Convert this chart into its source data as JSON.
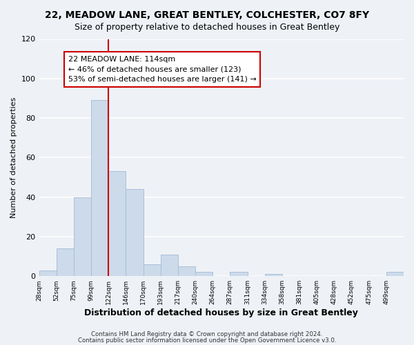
{
  "title": "22, MEADOW LANE, GREAT BENTLEY, COLCHESTER, CO7 8FY",
  "subtitle": "Size of property relative to detached houses in Great Bentley",
  "xlabel": "Distribution of detached houses by size in Great Bentley",
  "ylabel": "Number of detached properties",
  "bin_labels": [
    "28sqm",
    "52sqm",
    "75sqm",
    "99sqm",
    "122sqm",
    "146sqm",
    "170sqm",
    "193sqm",
    "217sqm",
    "240sqm",
    "264sqm",
    "287sqm",
    "311sqm",
    "334sqm",
    "358sqm",
    "381sqm",
    "405sqm",
    "428sqm",
    "452sqm",
    "475sqm",
    "499sqm"
  ],
  "bar_values": [
    3,
    14,
    40,
    89,
    53,
    44,
    6,
    11,
    5,
    2,
    0,
    2,
    0,
    1,
    0,
    0,
    0,
    0,
    0,
    0,
    2
  ],
  "bar_color": "#ccdaea",
  "bar_edge_color": "#aabfd8",
  "highlight_line_color": "#cc0000",
  "annotation_line1": "22 MEADOW LANE: 114sqm",
  "annotation_line2": "← 46% of detached houses are smaller (123)",
  "annotation_line3": "53% of semi-detached houses are larger (141) →",
  "annotation_box_color": "white",
  "annotation_box_edge": "#cc0000",
  "ylim": [
    0,
    120
  ],
  "yticks": [
    0,
    20,
    40,
    60,
    80,
    100,
    120
  ],
  "footer1": "Contains HM Land Registry data © Crown copyright and database right 2024.",
  "footer2": "Contains public sector information licensed under the Open Government Licence v3.0.",
  "background_color": "#eef2f7",
  "plot_background": "#eef2f7",
  "grid_color": "white",
  "highlight_bar_index": 3,
  "title_fontsize": 10,
  "subtitle_fontsize": 9
}
